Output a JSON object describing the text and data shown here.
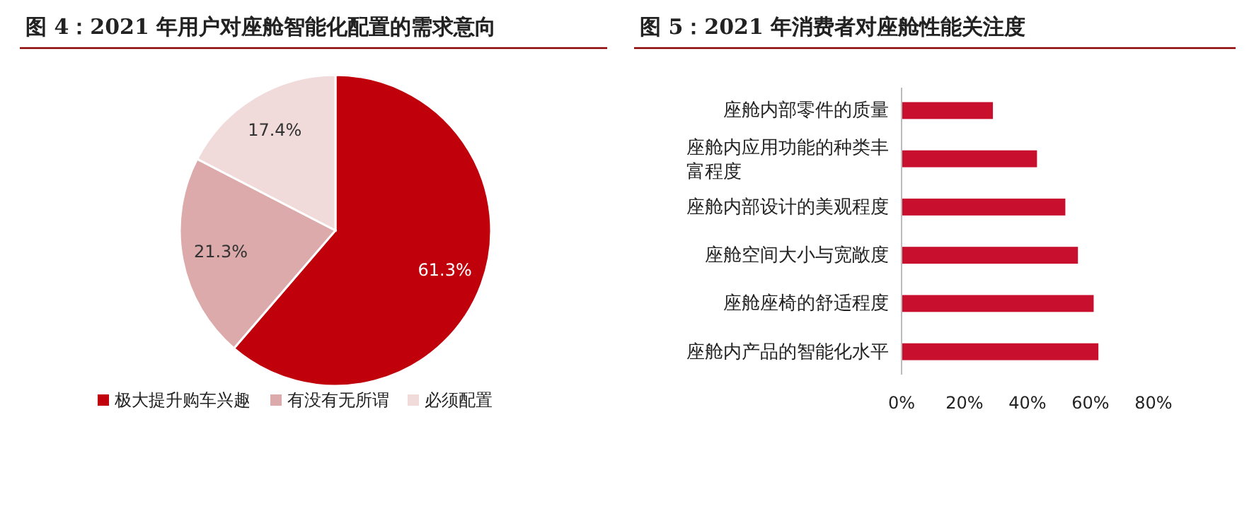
{
  "chart_data": [
    {
      "type": "pie",
      "title": "图 4：2021 年用户对座舱智能化配置的需求意向",
      "categories": [
        "极大提升购车兴趣",
        "有没有无所谓",
        "必须配置"
      ],
      "values": [
        61.3,
        21.3,
        17.4
      ],
      "colors": [
        "#c0000b",
        "#dcaaaa",
        "#f0dada"
      ],
      "value_labels": [
        "61.3%",
        "21.3%",
        "17.4%"
      ],
      "legend": "bottom"
    },
    {
      "type": "bar",
      "orientation": "horizontal",
      "title": "图 5：2021 年消费者对座舱性能关注度",
      "categories": [
        "座舱内部零件的质量",
        "座舱内应用功能的种类丰富程度",
        "座舱内部设计的美观程度",
        "座舱空间大小与宽敞度",
        "座舱座椅的舒适程度",
        "座舱内产品的智能化水平"
      ],
      "values": [
        29,
        43,
        52,
        56,
        61,
        62.5
      ],
      "color": "#c8102e",
      "xlim": [
        0,
        80
      ],
      "xticks": [
        {
          "value": 0,
          "label": "0%"
        },
        {
          "value": 20,
          "label": "20%"
        },
        {
          "value": 40,
          "label": "40%"
        },
        {
          "value": 60,
          "label": "60%"
        },
        {
          "value": 80,
          "label": "80%"
        }
      ],
      "grid": false
    }
  ]
}
